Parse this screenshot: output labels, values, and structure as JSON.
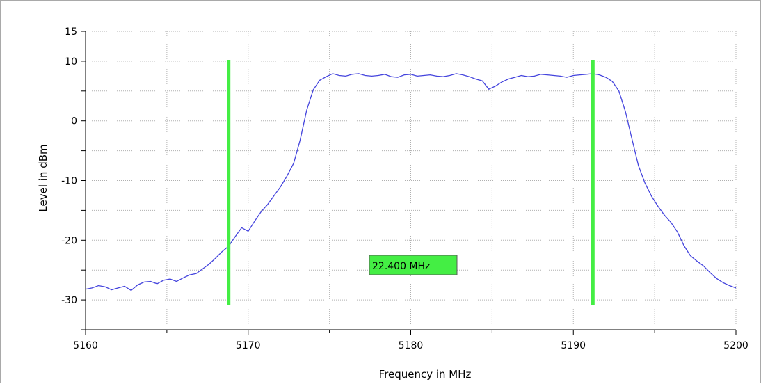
{
  "chart_data": {
    "type": "line",
    "title": "",
    "xlabel": "Frequency in MHz",
    "ylabel": "Level in dBm",
    "xlim": [
      5160,
      5200
    ],
    "ylim": [
      -35,
      15
    ],
    "x_ticks": [
      "5160",
      "5170",
      "5180",
      "5190",
      "5200"
    ],
    "y_ticks": [
      "15",
      "10",
      "0",
      "-10",
      "-20",
      "-30"
    ],
    "grid": true,
    "colors": {
      "trace": "#4444dd",
      "marker": "#44ee44",
      "grid": "#b0b0b0"
    },
    "series": [
      {
        "x": [
          5160.0,
          5160.4,
          5160.8,
          5161.2,
          5161.6,
          5162.0,
          5162.4,
          5162.8,
          5163.2,
          5163.6,
          5164.0,
          5164.4,
          5164.8,
          5165.2,
          5165.6,
          5166.0,
          5166.4,
          5166.8,
          5167.2,
          5167.6,
          5168.0,
          5168.4,
          5168.8,
          5169.2,
          5169.6,
          5170.0,
          5170.4,
          5170.8,
          5171.2,
          5171.6,
          5172.0,
          5172.4,
          5172.8,
          5173.2,
          5173.6,
          5174.0,
          5174.4,
          5174.8,
          5175.2,
          5175.6,
          5176.0,
          5176.4,
          5176.8,
          5177.2,
          5177.6,
          5178.0,
          5178.4,
          5178.8,
          5179.2,
          5179.6,
          5180.0,
          5180.4,
          5180.8,
          5181.2,
          5181.6,
          5182.0,
          5182.4,
          5182.8,
          5183.2,
          5183.6,
          5184.0,
          5184.4,
          5184.8,
          5185.2,
          5185.6,
          5186.0,
          5186.4,
          5186.8,
          5187.2,
          5187.6,
          5188.0,
          5188.4,
          5188.8,
          5189.2,
          5189.6,
          5190.0,
          5190.4,
          5190.8,
          5191.2,
          5191.6,
          5192.0,
          5192.4,
          5192.8,
          5193.2,
          5193.6,
          5194.0,
          5194.4,
          5194.8,
          5195.2,
          5195.6,
          5196.0,
          5196.4,
          5196.8,
          5197.2,
          5197.6,
          5198.0,
          5198.4,
          5198.8,
          5199.2,
          5199.6,
          5200.0
        ],
        "y": [
          -28.2,
          -28.0,
          -27.6,
          -27.8,
          -28.3,
          -28.0,
          -27.7,
          -28.4,
          -27.5,
          -27.0,
          -26.9,
          -27.3,
          -26.7,
          -26.5,
          -26.9,
          -26.3,
          -25.8,
          -25.6,
          -24.8,
          -24.0,
          -23.0,
          -21.9,
          -21.0,
          -19.4,
          -17.9,
          -18.5,
          -16.8,
          -15.2,
          -14.0,
          -12.5,
          -11.0,
          -9.2,
          -7.1,
          -3.2,
          1.8,
          5.2,
          6.8,
          7.4,
          7.9,
          7.6,
          7.5,
          7.8,
          7.9,
          7.6,
          7.5,
          7.6,
          7.8,
          7.4,
          7.3,
          7.7,
          7.8,
          7.5,
          7.6,
          7.7,
          7.5,
          7.4,
          7.6,
          7.9,
          7.7,
          7.4,
          7.0,
          6.7,
          5.3,
          5.8,
          6.5,
          7.0,
          7.3,
          7.6,
          7.4,
          7.5,
          7.8,
          7.7,
          7.6,
          7.5,
          7.3,
          7.6,
          7.7,
          7.8,
          7.9,
          7.7,
          7.3,
          6.6,
          5.0,
          1.6,
          -3.0,
          -7.5,
          -10.4,
          -12.6,
          -14.3,
          -15.8,
          -17.0,
          -18.6,
          -20.9,
          -22.6,
          -23.5,
          -24.3,
          -25.4,
          -26.4,
          -27.1,
          -27.6,
          -28.0
        ]
      }
    ],
    "markers": {
      "left_x": 5168.8,
      "right_x": 5191.2,
      "bandwidth_label": "22.400 MHz"
    }
  }
}
